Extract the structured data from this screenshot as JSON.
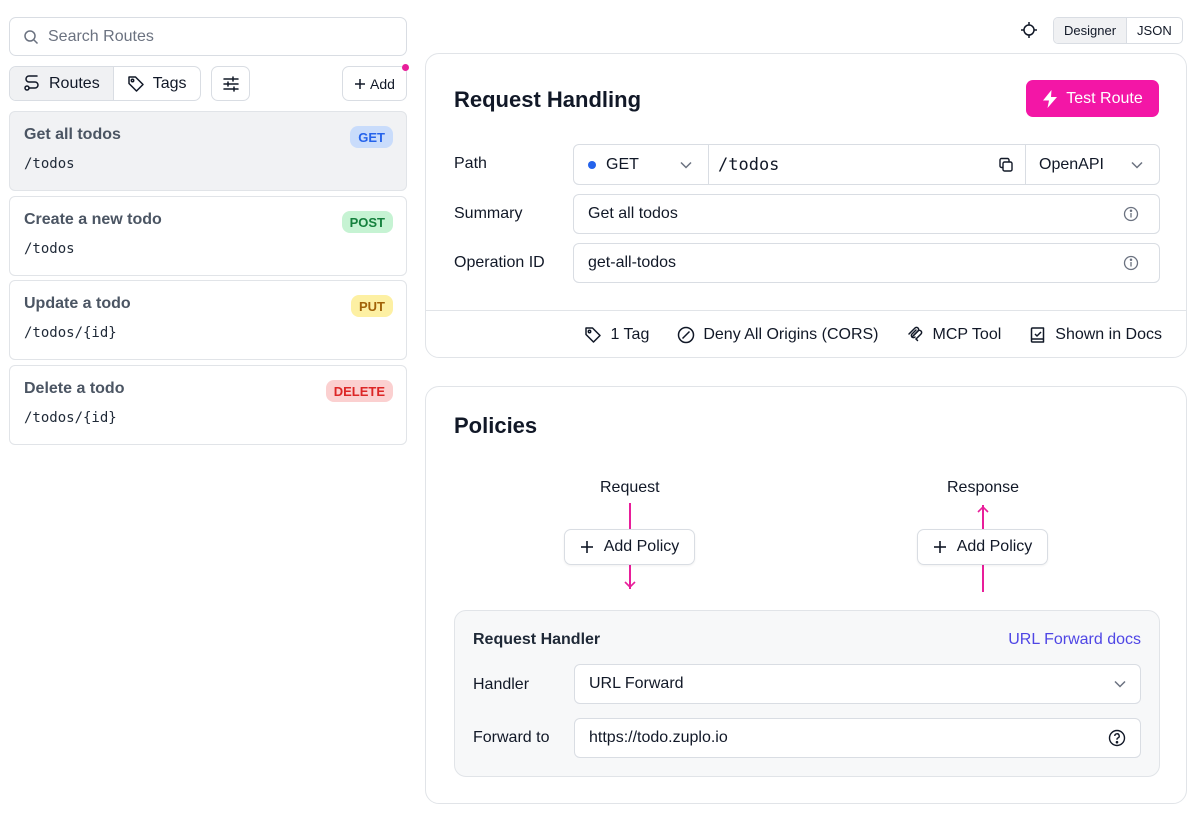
{
  "sidebar": {
    "search_placeholder": "Search Routes",
    "tabs": [
      {
        "label": "Routes",
        "icon": "route-icon",
        "active": true
      },
      {
        "label": "Tags",
        "icon": "tag-icon",
        "active": false
      }
    ],
    "filter_icon": "sliders-icon",
    "add_label": "Add",
    "routes": [
      {
        "title": "Get all todos",
        "path": "/todos",
        "method": "GET",
        "active": true
      },
      {
        "title": "Create a new todo",
        "path": "/todos",
        "method": "POST",
        "active": false
      },
      {
        "title": "Update a todo",
        "path": "/todos/{id}",
        "method": "PUT",
        "active": false
      },
      {
        "title": "Delete a todo",
        "path": "/todos/{id}",
        "method": "DELETE",
        "active": false
      }
    ]
  },
  "header": {
    "view_toggle": [
      "Designer",
      "JSON"
    ],
    "active_view": "Designer"
  },
  "request_handling": {
    "title": "Request Handling",
    "test_button": "Test Route",
    "path_label": "Path",
    "method": "GET",
    "path": "/todos",
    "spec_type": "OpenAPI",
    "summary_label": "Summary",
    "summary": "Get all todos",
    "operation_id_label": "Operation ID",
    "operation_id": "get-all-todos",
    "footer": {
      "tags": "1 Tag",
      "cors": "Deny All Origins (CORS)",
      "mcp": "MCP Tool",
      "docs": "Shown in Docs"
    }
  },
  "policies": {
    "title": "Policies",
    "request_label": "Request",
    "response_label": "Response",
    "add_policy_label": "Add Policy",
    "handler": {
      "title": "Request Handler",
      "docs_link": "URL Forward docs",
      "handler_label": "Handler",
      "handler_value": "URL Forward",
      "forward_label": "Forward to",
      "forward_value": "https://todo.zuplo.io"
    }
  },
  "colors": {
    "accent": "#f316a6",
    "link": "#4f46e5",
    "get": "#2563eb",
    "post": "#15803d",
    "put": "#a16207",
    "delete": "#dc2626"
  }
}
